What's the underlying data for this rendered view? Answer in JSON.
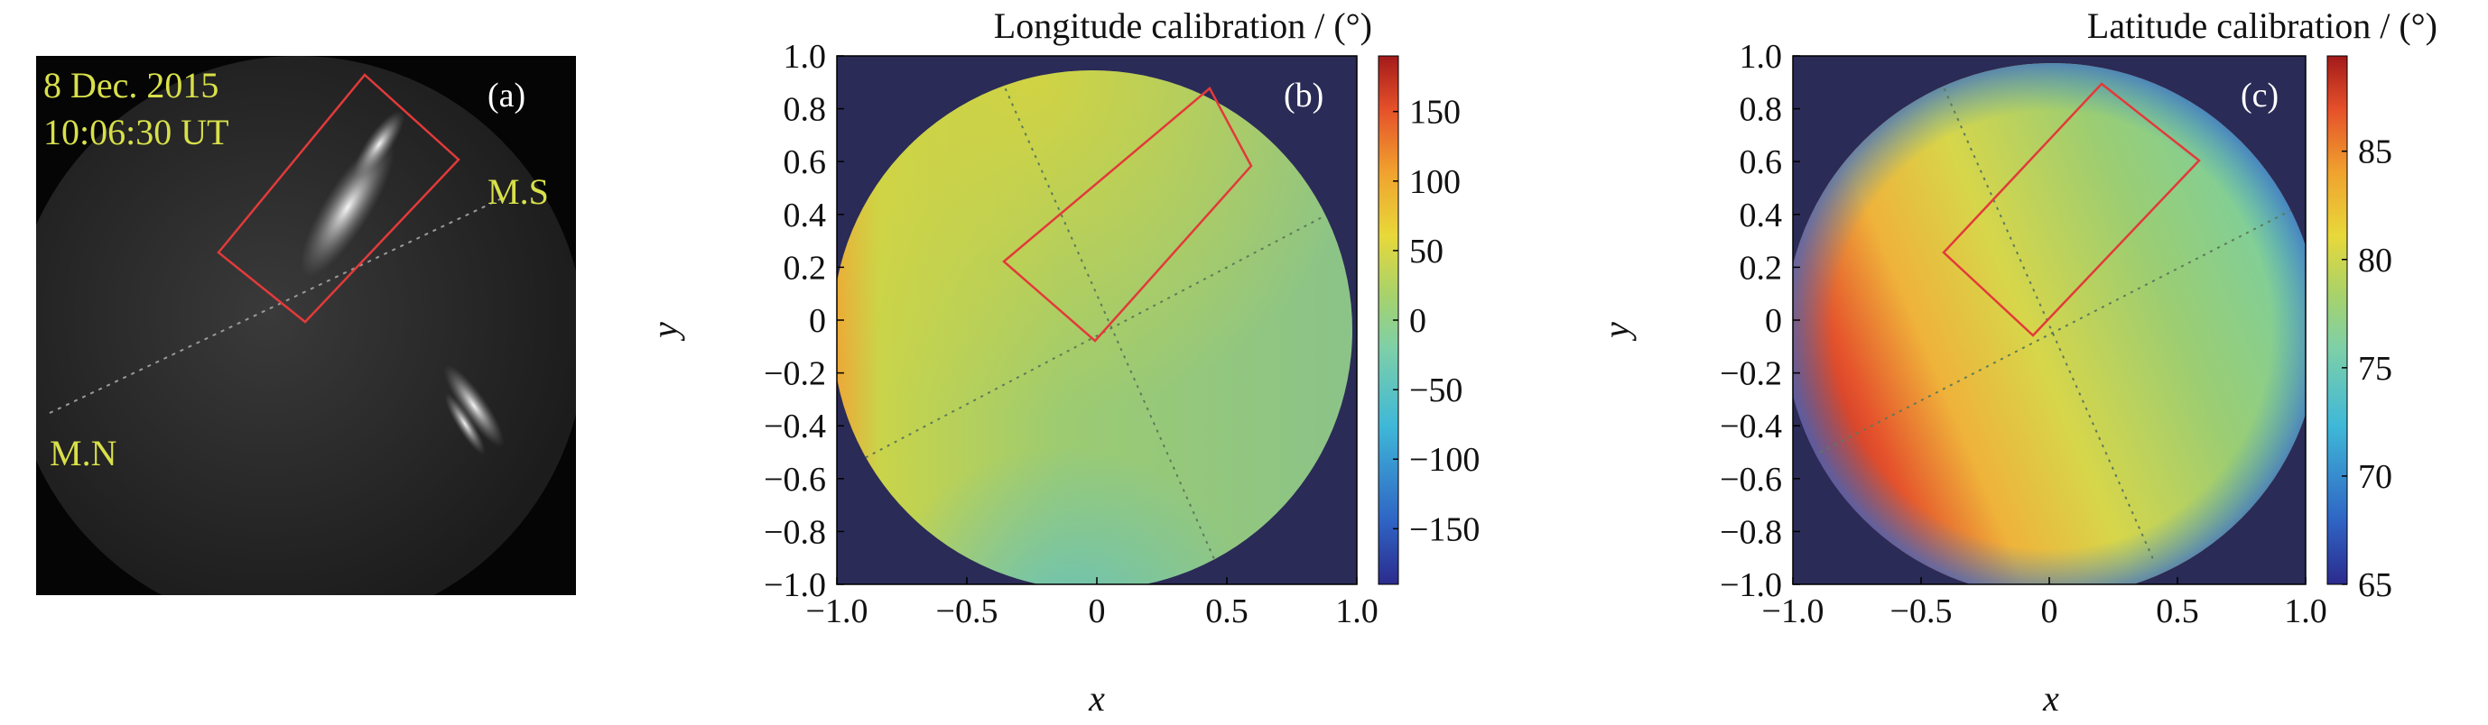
{
  "colors": {
    "background": "#2b2b57",
    "frame": "#e23a3a",
    "allsky_bg": "#050505",
    "overlay_text": "#d8e04a"
  },
  "panel_a": {
    "panel_label": "(a)",
    "date": "8 Dec. 2015",
    "time": "10:06:30 UT",
    "meridian_south": "M.S",
    "meridian_north": "M.N"
  },
  "chart_data": [
    {
      "type": "heatmap",
      "panel_label": "(b)",
      "title": "Longitude calibration / (°)",
      "xlabel": "x",
      "ylabel": "y",
      "xlim": [
        -1.0,
        1.0
      ],
      "ylim": [
        -1.0,
        1.0
      ],
      "x_ticks": [
        "−1.0",
        "−0.5",
        "0",
        "0.5",
        "1.0"
      ],
      "y_ticks": [
        "1.0",
        "0.8",
        "0.6",
        "0.4",
        "0.2",
        "0",
        "−0.2",
        "−0.4",
        "−0.6",
        "−0.8",
        "−1.0"
      ],
      "colorbar": {
        "min": -190,
        "max": 190,
        "ticks": [
          "150",
          "100",
          "50",
          "0",
          "−50",
          "−100",
          "−150"
        ],
        "tick_values": [
          150,
          100,
          50,
          0,
          -50,
          -100,
          -150
        ]
      }
    },
    {
      "type": "heatmap",
      "panel_label": "(c)",
      "title": "Latitude calibration / (°)",
      "xlabel": "x",
      "ylabel": "y",
      "xlim": [
        -1.0,
        1.0
      ],
      "ylim": [
        -1.0,
        1.0
      ],
      "x_ticks": [
        "−1.0",
        "−0.5",
        "0",
        "0.5",
        "1.0"
      ],
      "y_ticks": [
        "1.0",
        "0.8",
        "0.6",
        "0.4",
        "0.2",
        "0",
        "−0.2",
        "−0.4",
        "−0.6",
        "−0.8",
        "−1.0"
      ],
      "colorbar": {
        "min": 65,
        "max": 89.4,
        "ticks": [
          "85",
          "80",
          "75",
          "70",
          "65"
        ],
        "tick_values": [
          85,
          80,
          75,
          70,
          65
        ]
      }
    }
  ]
}
